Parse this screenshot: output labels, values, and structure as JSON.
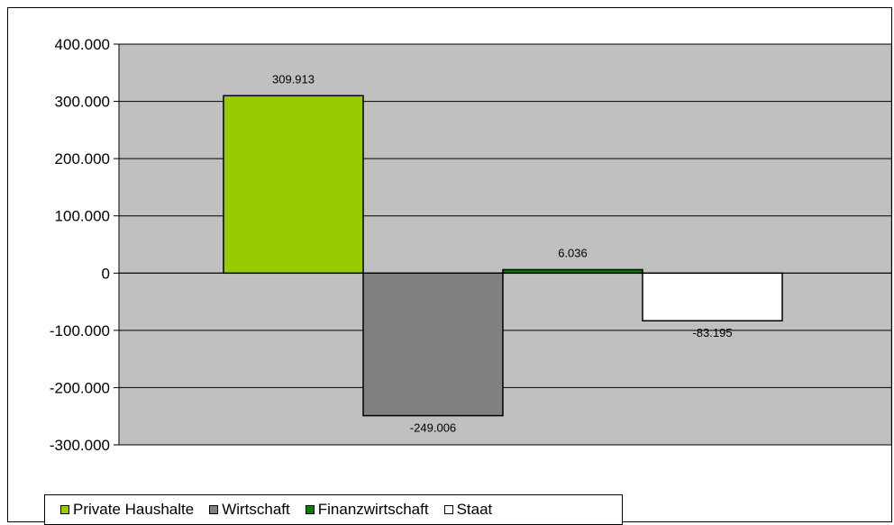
{
  "chart_data": {
    "type": "bar",
    "categories": [
      "Private Haushalte",
      "Wirtschaft",
      "Finanzwirtschaft",
      "Staat"
    ],
    "values": [
      309913,
      -249006,
      6036,
      -83195
    ],
    "value_labels": [
      "309.913",
      "-249.006",
      "6.036",
      "-83.195"
    ],
    "colors": [
      "#99CC00",
      "#808080",
      "#008000",
      "#FFFFFF"
    ],
    "ylim": [
      -300000,
      400000
    ],
    "yticks": [
      400000,
      300000,
      200000,
      100000,
      0,
      -100000,
      -200000,
      -300000
    ],
    "ytick_labels": [
      "400.000",
      "300.000",
      "200.000",
      "100.000",
      "0",
      "-100.000",
      "-200.000",
      "-300.000"
    ],
    "plot_background": "#C0C0C0",
    "grid": true,
    "legend_position": "bottom-left",
    "title": "",
    "xlabel": "",
    "ylabel": ""
  },
  "legend": {
    "items": [
      {
        "label": "Private Haushalte",
        "color": "#99CC00"
      },
      {
        "label": "Wirtschaft",
        "color": "#808080"
      },
      {
        "label": "Finanzwirtschaft",
        "color": "#008000"
      },
      {
        "label": "Staat",
        "color": "#FFFFFF"
      }
    ]
  }
}
